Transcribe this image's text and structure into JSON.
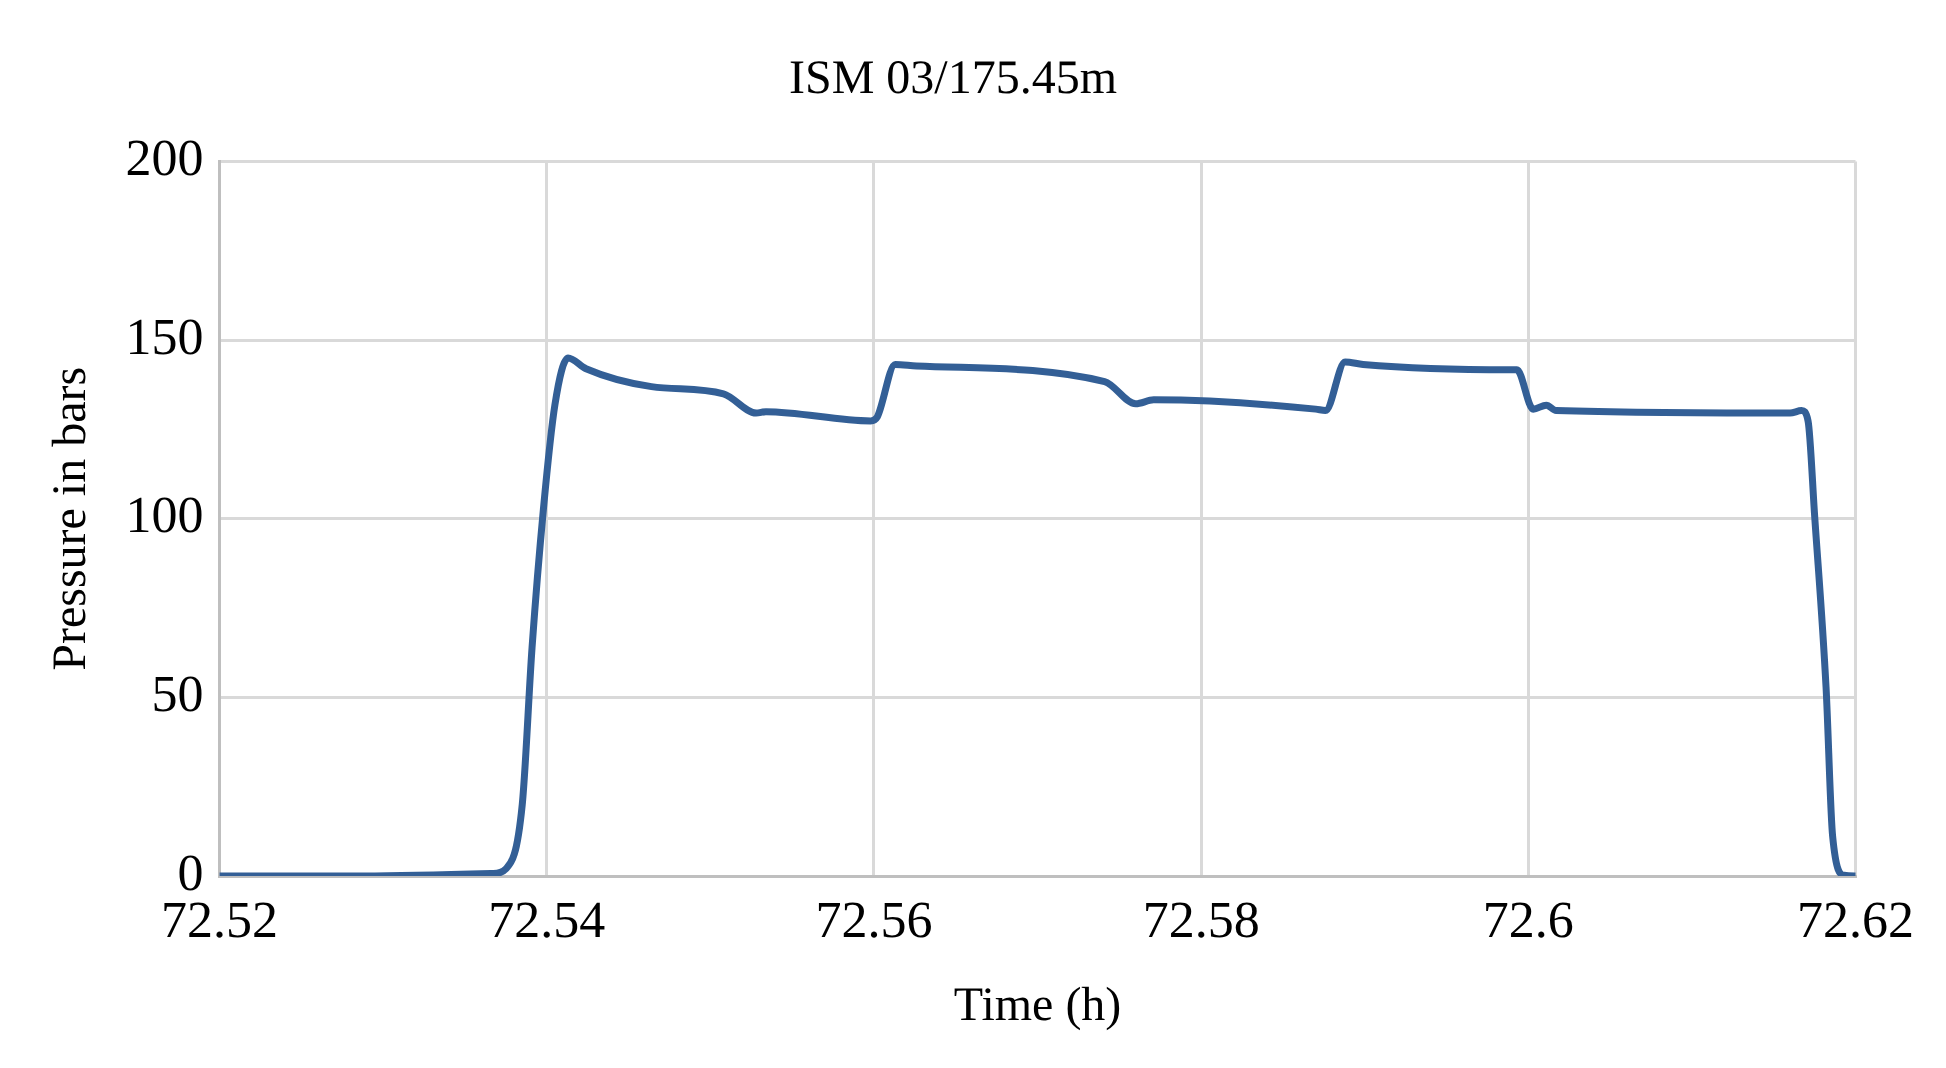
{
  "chart_data": {
    "type": "line",
    "title": "ISM 03/175.45m",
    "xlabel": "Time (h)",
    "ylabel": "Pressure in bars",
    "xlim": [
      72.52,
      72.62
    ],
    "xticks": [
      72.52,
      72.54,
      72.56,
      72.58,
      72.6,
      72.62
    ],
    "ylim": [
      0,
      200
    ],
    "yticks": [
      0,
      50,
      100,
      150,
      200
    ],
    "grid": true,
    "legend": false,
    "marker": "none",
    "line_style": "solid",
    "series": [
      {
        "color": "#335f96",
        "x": [
          72.52,
          72.5288,
          72.5367,
          72.5375,
          72.5385,
          72.5391,
          72.5398,
          72.5405,
          72.5413,
          72.5424,
          72.5464,
          72.5508,
          72.5528,
          72.5534,
          72.5598,
          72.5602,
          72.5613,
          72.5626,
          72.5741,
          72.576,
          72.5771,
          72.587,
          72.5876,
          72.5888,
          72.5899,
          72.5989,
          72.5993,
          72.6003,
          72.6011,
          72.6017,
          72.616,
          72.6167,
          72.6171,
          72.6175,
          72.6182,
          72.6186,
          72.6193,
          72.62
        ],
        "values": [
          0,
          0,
          0.7,
          2,
          20,
          64,
          103,
          132,
          145,
          142,
          137,
          135,
          129.6,
          130,
          127.4,
          128.5,
          143.2,
          142.8,
          138.4,
          132.2,
          133.3,
          130.7,
          130.3,
          143.9,
          143.2,
          141.7,
          141.7,
          130.7,
          131.8,
          130.3,
          129.6,
          130.3,
          127.4,
          101,
          52.8,
          11.2,
          0.2,
          0
        ]
      }
    ]
  }
}
